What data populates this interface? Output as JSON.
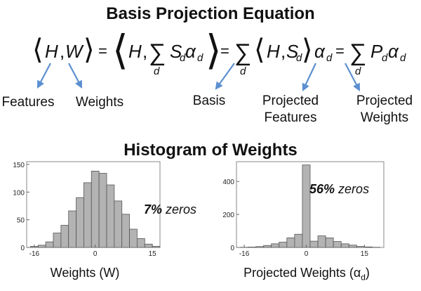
{
  "title_top": "Basis Projection Equation",
  "title_bottom": "Histogram of Weights",
  "equation": {
    "lhs": "⟨H,W⟩",
    "eq": "=",
    "expr1": "⟨H, ∑d SdΑd⟩",
    "expr2": "∑d ⟨H,Sd⟩αd",
    "expr3": "∑d Pdαd"
  },
  "labels": {
    "features": "Features",
    "weights": "Weights",
    "basis": "Basis",
    "projected_features_line1": "Projected",
    "projected_features_line2": "Features",
    "projected_weights_line1": "Projected",
    "projected_weights_line2": "Weights"
  },
  "chart_data": [
    {
      "type": "bar",
      "xlabel": "Weights (W)",
      "annotation_pct": "7%",
      "annotation_word": "zeros",
      "x_ticks": [
        -16,
        0,
        15
      ],
      "y_ticks": [
        0,
        50,
        100,
        150
      ],
      "ylim": [
        0,
        155
      ],
      "xlim": [
        -18,
        17
      ],
      "bin_width": 2,
      "bins_start": [
        -17,
        -15,
        -13,
        -11,
        -9,
        -7,
        -5,
        -3,
        -1,
        1,
        3,
        5,
        7,
        9,
        11,
        13,
        15
      ],
      "values": [
        2,
        4,
        10,
        26,
        40,
        66,
        90,
        117,
        138,
        134,
        113,
        84,
        60,
        33,
        16,
        6,
        2
      ]
    },
    {
      "type": "bar",
      "xlabel": "Projected Weights (α",
      "xlabel_sub": "d",
      "xlabel_close": ")",
      "annotation_pct": "56%",
      "annotation_word": "zeros",
      "x_ticks": [
        -16,
        0,
        15
      ],
      "y_ticks": [
        0,
        200,
        400
      ],
      "ylim": [
        0,
        520
      ],
      "xlim": [
        -18,
        20
      ],
      "bin_width": 2,
      "bins_start": [
        -17,
        -15,
        -13,
        -11,
        -9,
        -7,
        -5,
        -3,
        -1,
        1,
        3,
        5,
        7,
        9,
        11,
        13,
        15,
        17
      ],
      "values": [
        1,
        2,
        5,
        12,
        22,
        32,
        58,
        80,
        500,
        38,
        70,
        58,
        36,
        22,
        14,
        6,
        3,
        1
      ]
    }
  ]
}
